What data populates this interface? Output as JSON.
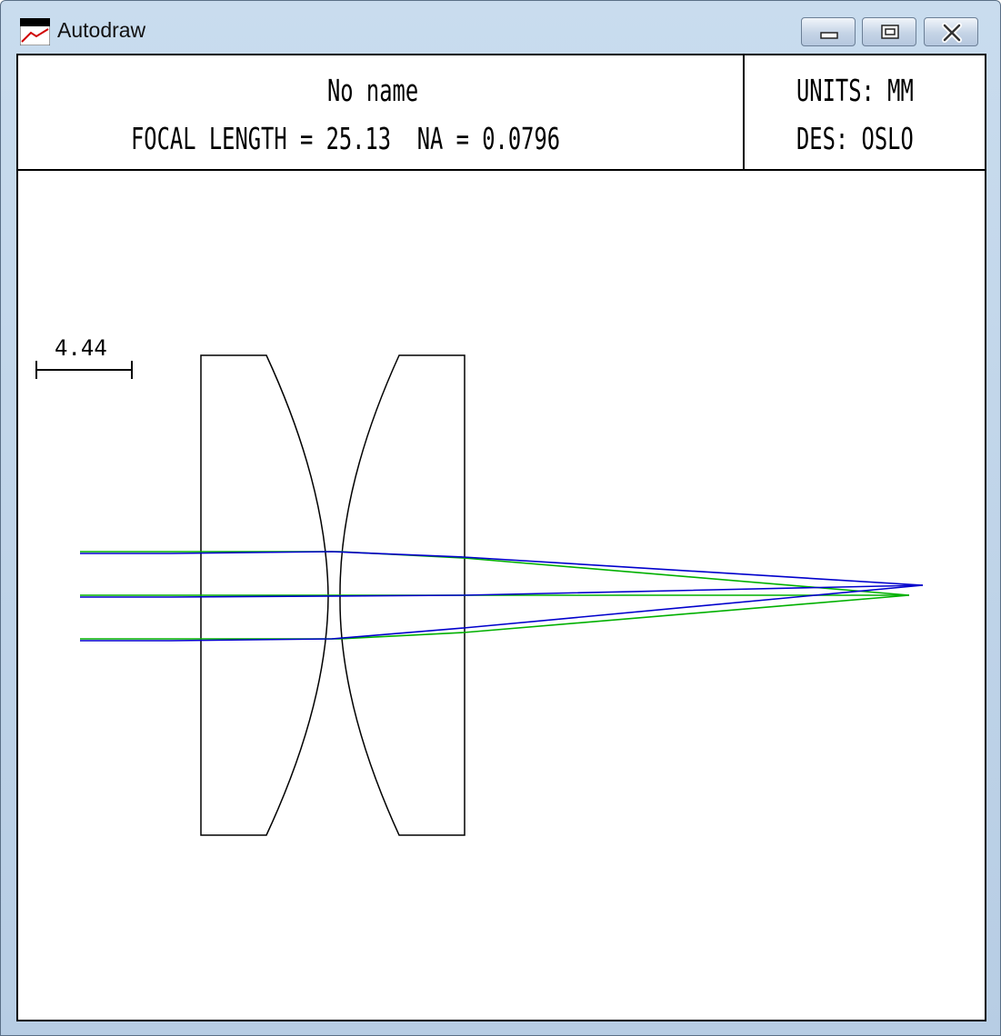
{
  "window": {
    "title": "Autodraw",
    "app_icon": "autodraw-icon",
    "controls": {
      "minimize_icon": "minimize-icon",
      "maximize_icon": "restore-icon",
      "close_icon": "close-icon"
    }
  },
  "header": {
    "design_name": "No name",
    "focal_length_text": "FOCAL LENGTH = 25.13  NA = 0.0796",
    "units_text": "UNITS: MM",
    "designer_text": "DES: OSLO"
  },
  "drawing": {
    "scale_bar_label": "4.44",
    "colors": {
      "lens_outline": "#000000",
      "ray_blue": "#0000cc",
      "ray_green": "#00b000",
      "frame": "#000000"
    }
  }
}
